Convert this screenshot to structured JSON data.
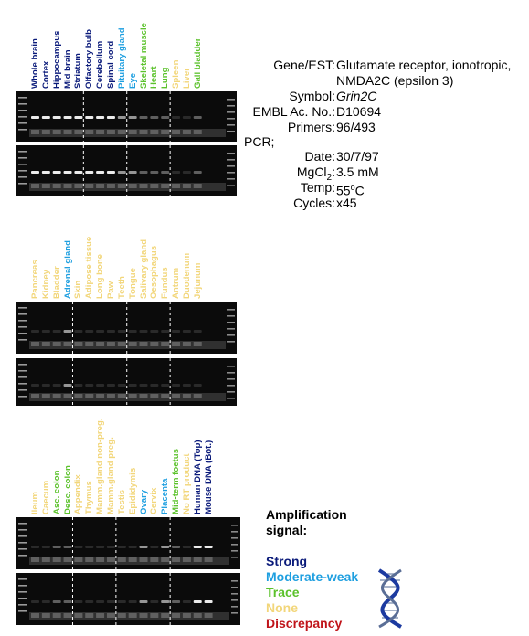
{
  "colors": {
    "strong": "#0a1a7a",
    "moderate": "#1e9fe0",
    "trace": "#5cc22c",
    "none": "#f2d67a",
    "discrepancy": "#c0141a"
  },
  "panels": [
    {
      "lanes": [
        {
          "label": "Whole brain",
          "level": "strong"
        },
        {
          "label": "Cortex",
          "level": "strong"
        },
        {
          "label": "Hippocampus",
          "level": "strong"
        },
        {
          "label": "Mid brain",
          "level": "strong"
        },
        {
          "label": "Striatum",
          "level": "strong"
        },
        {
          "label": "Olfactory bulb",
          "level": "strong"
        },
        {
          "label": "Cerebellum",
          "level": "strong"
        },
        {
          "label": "Spinal cord",
          "level": "strong"
        },
        {
          "label": "Pituitary gland",
          "level": "moderate"
        },
        {
          "label": "Eye",
          "level": "moderate"
        },
        {
          "label": "Skeletal muscle",
          "level": "trace"
        },
        {
          "label": "Heart",
          "level": "trace"
        },
        {
          "label": "Lung",
          "level": "trace"
        },
        {
          "label": "Spleen",
          "level": "none"
        },
        {
          "label": "Liver",
          "level": "none"
        },
        {
          "label": "Gall bladder",
          "level": "trace"
        }
      ]
    },
    {
      "lanes": [
        {
          "label": "Pancreas",
          "level": "none"
        },
        {
          "label": "Kidney",
          "level": "none"
        },
        {
          "label": "Bladder",
          "level": "none"
        },
        {
          "label": "Adrenal gland",
          "level": "moderate"
        },
        {
          "label": "Skin",
          "level": "none"
        },
        {
          "label": "Adipose tissue",
          "level": "none"
        },
        {
          "label": "Long bone",
          "level": "none"
        },
        {
          "label": "Paw",
          "level": "none"
        },
        {
          "label": "Teeth",
          "level": "none"
        },
        {
          "label": "Tongue",
          "level": "none"
        },
        {
          "label": "Salivary gland",
          "level": "none"
        },
        {
          "label": "Oesophagus",
          "level": "none"
        },
        {
          "label": "Fundus",
          "level": "none"
        },
        {
          "label": "Antrum",
          "level": "none"
        },
        {
          "label": "Duodenum",
          "level": "none"
        },
        {
          "label": "Jejunum",
          "level": "none"
        }
      ]
    },
    {
      "lanes": [
        {
          "label": "Ileum",
          "level": "none"
        },
        {
          "label": "Caecum",
          "level": "none"
        },
        {
          "label": "Asc. colon",
          "level": "trace"
        },
        {
          "label": "Desc. colon",
          "level": "trace"
        },
        {
          "label": "Appendix",
          "level": "none"
        },
        {
          "label": "Thymus",
          "level": "none"
        },
        {
          "label": "Mamm.gland non-preg.",
          "level": "none"
        },
        {
          "label": "Mamm.gland preg.",
          "level": "none"
        },
        {
          "label": "Testis",
          "level": "none"
        },
        {
          "label": "Epididymis",
          "level": "none"
        },
        {
          "label": "Ovary",
          "level": "moderate"
        },
        {
          "label": "Cervix",
          "level": "none"
        },
        {
          "label": "Placenta",
          "level": "moderate"
        },
        {
          "label": "Mid-term foetus",
          "level": "trace"
        },
        {
          "label": "No RT product",
          "level": "none"
        },
        {
          "label": "Human DNA (Top)",
          "level": "strong"
        },
        {
          "label": "Mouse DNA (Bot.)",
          "level": "strong"
        }
      ]
    }
  ],
  "info": {
    "gene_key": "Gene/EST:",
    "gene_line1": "Glutamate receptor, ionotropic,",
    "gene_line2": "NMDA2C (epsilon 3)",
    "symbol_key": "Symbol:",
    "symbol_val": "Grin2C",
    "embl_key": "EMBL Ac. No.:",
    "embl_val": "D10694",
    "primers_key": "Primers:",
    "primers_val": "96/493",
    "pcr_key": "PCR;",
    "date_key": "Date:",
    "date_val": "30/7/97",
    "mgcl_key_a": "MgCl",
    "mgcl_key_sub": "2",
    "mgcl_key_b": ":",
    "mgcl_val": "3.5 mM",
    "temp_key": "Temp:",
    "temp_val_a": "55",
    "temp_val_sup": "o",
    "temp_val_b": "C",
    "cycles_key": "Cycles:",
    "cycles_val": "x45"
  },
  "legend": {
    "title_line1": "Amplification",
    "title_line2": "signal:",
    "strong": "Strong",
    "moderate": "Moderate-weak",
    "trace": "Trace",
    "none": "None",
    "discrepancy": "Discrepancy"
  }
}
